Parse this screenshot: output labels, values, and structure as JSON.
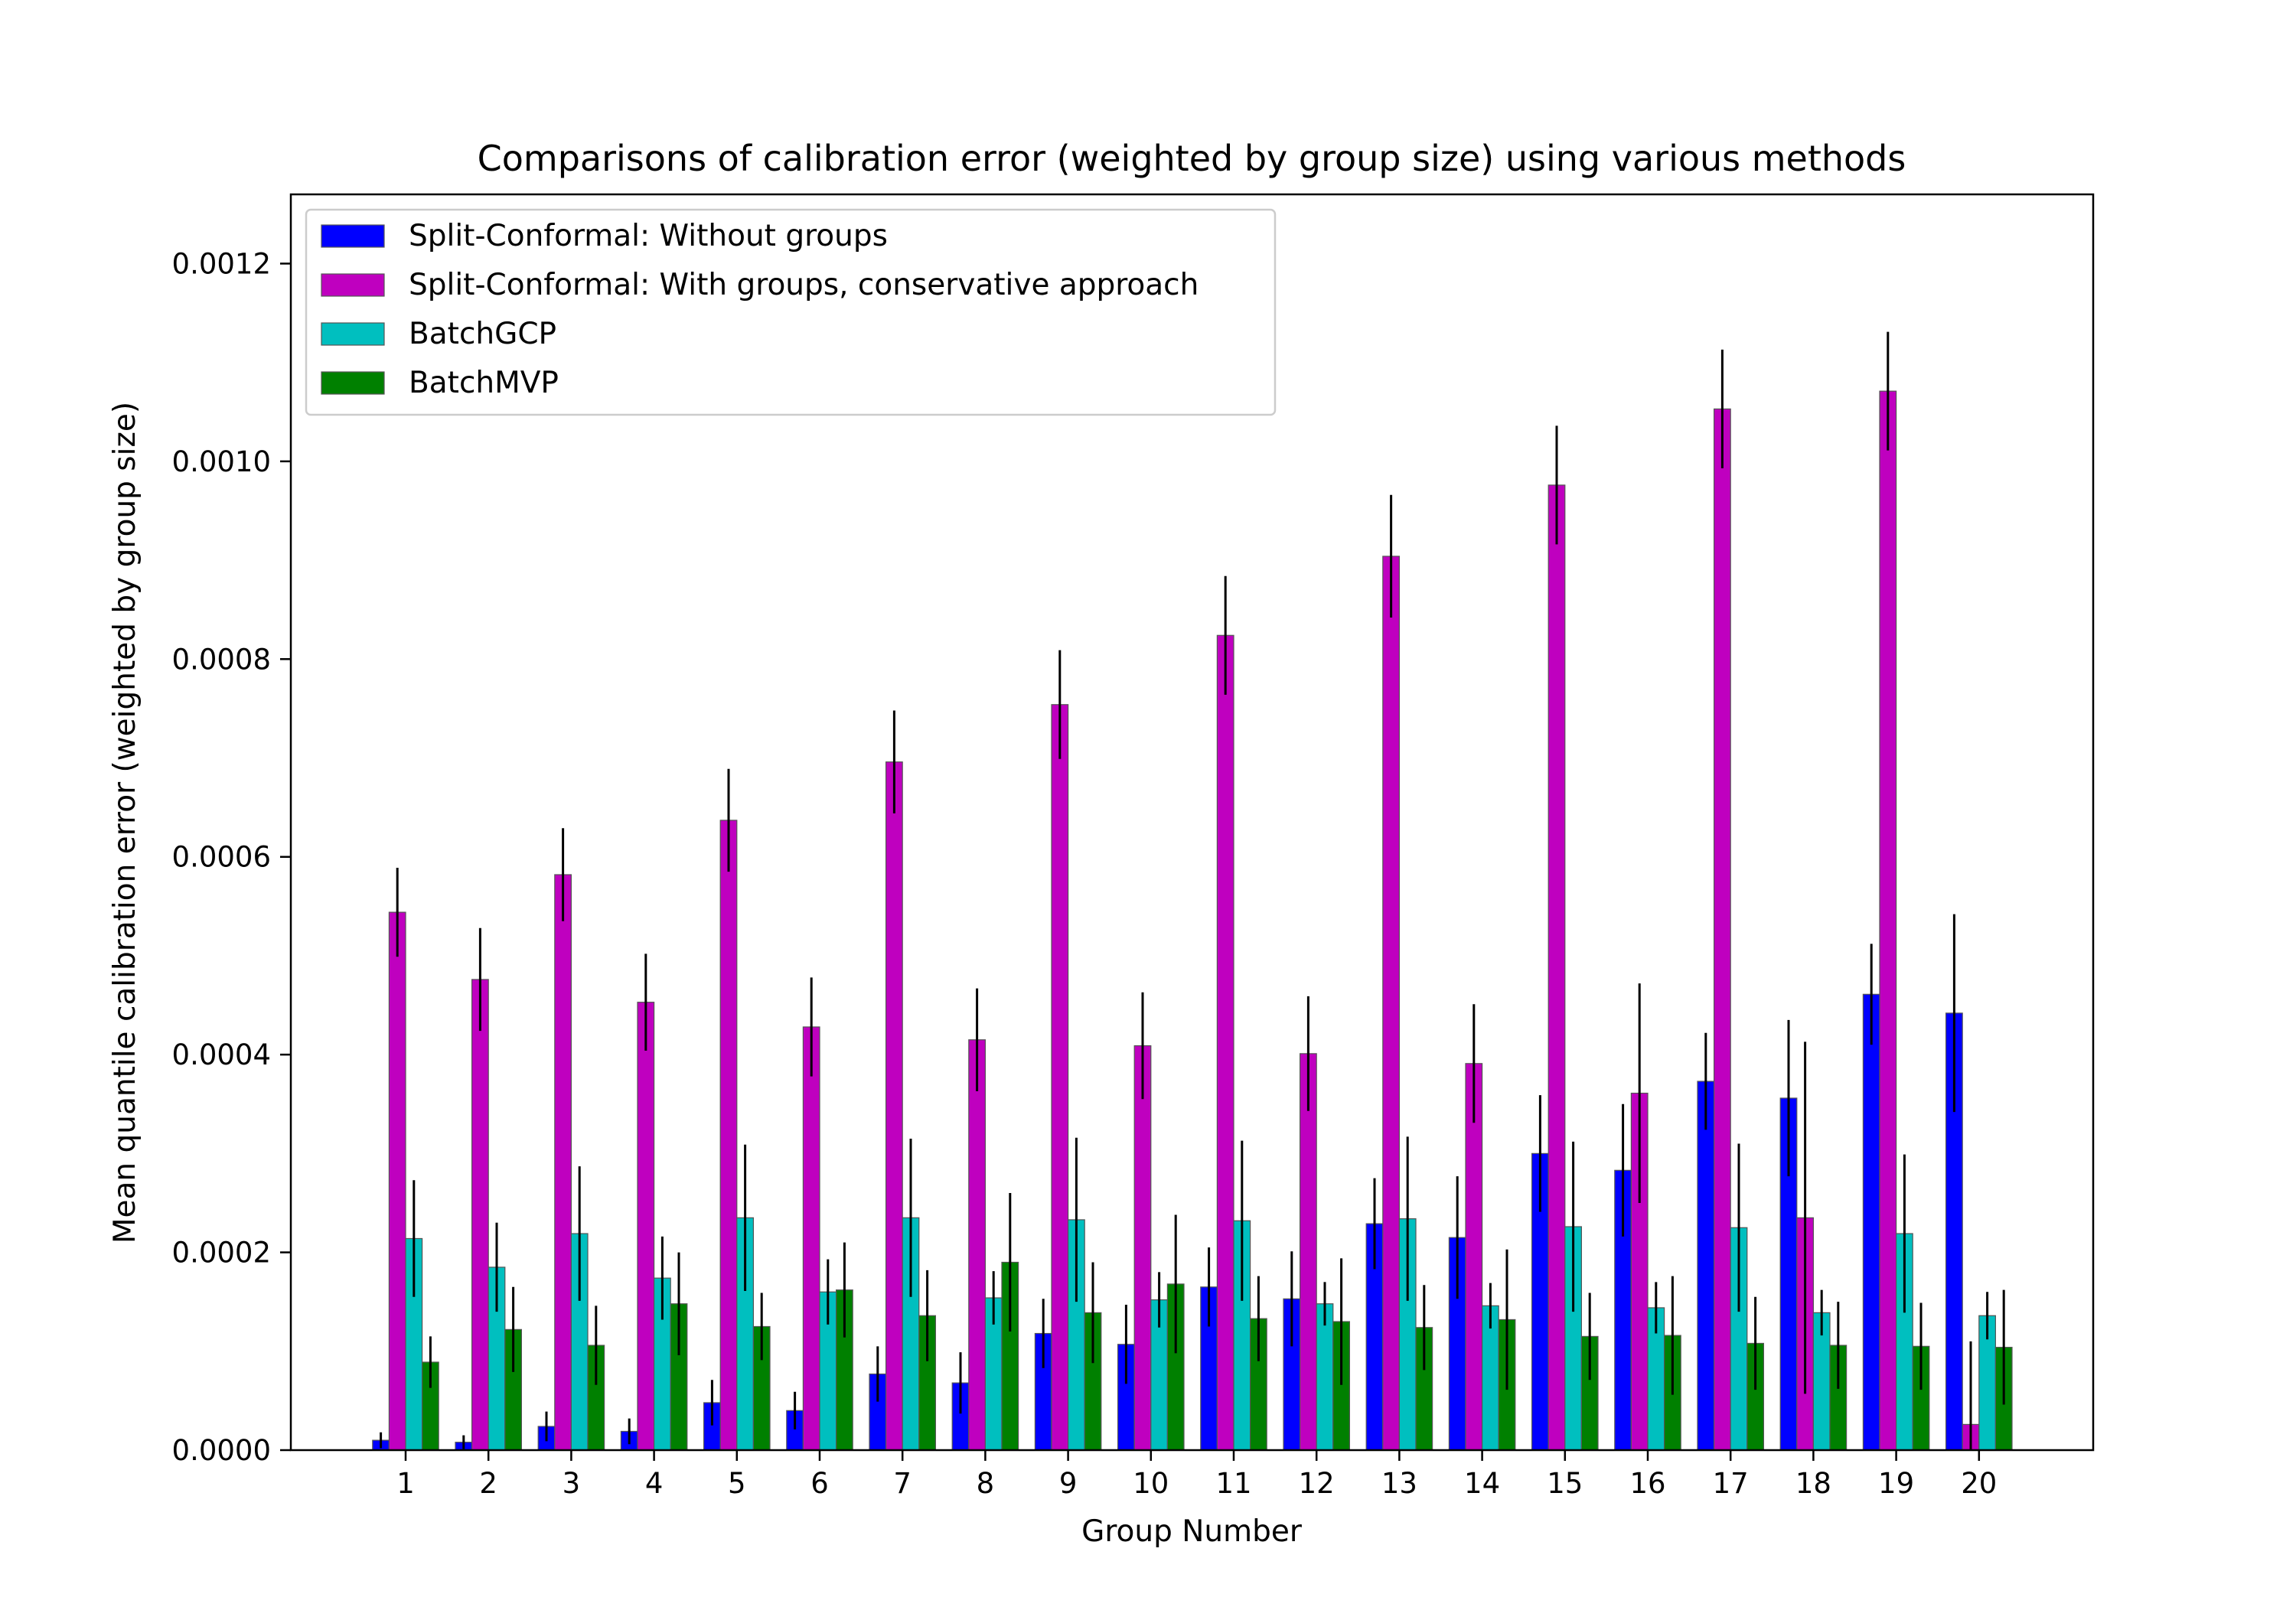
{
  "chart_data": {
    "type": "bar",
    "title": "Comparisons of calibration error (weighted by group size) using various methods",
    "xlabel": "Group Number",
    "ylabel": "Mean quantile calibration error (weighted by group size)",
    "ylim": [
      0,
      0.00127
    ],
    "yticks": [
      0,
      0.0002,
      0.0004,
      0.0006,
      0.0008,
      0.001,
      0.0012
    ],
    "ytick_labels": [
      "0.0000",
      "0.0002",
      "0.0004",
      "0.0006",
      "0.0008",
      "0.0010",
      "0.0012"
    ],
    "categories": [
      "1",
      "2",
      "3",
      "4",
      "5",
      "6",
      "7",
      "8",
      "9",
      "10",
      "11",
      "12",
      "13",
      "14",
      "15",
      "16",
      "17",
      "18",
      "19",
      "20"
    ],
    "legend_position": "top-left",
    "grid": false,
    "series": [
      {
        "name": "Split-Conformal: Without groups",
        "color": "#0000ff",
        "values": [
          1e-05,
          8e-06,
          2.4e-05,
          1.9e-05,
          4.8e-05,
          4e-05,
          7.7e-05,
          6.8e-05,
          0.000118,
          0.000107,
          0.000165,
          0.000153,
          0.000229,
          0.000215,
          0.0003,
          0.000283,
          0.000373,
          0.000356,
          0.000461,
          0.000442
        ],
        "errors": [
          8e-06,
          7e-06,
          1.5e-05,
          1.3e-05,
          2.3e-05,
          1.9e-05,
          2.8e-05,
          3.1e-05,
          3.5e-05,
          4e-05,
          4e-05,
          4.8e-05,
          4.6e-05,
          6.2e-05,
          5.9e-05,
          6.7e-05,
          4.9e-05,
          7.9e-05,
          5.1e-05,
          0.0001
        ]
      },
      {
        "name": "Split-Conformal: With groups, conservative approach",
        "color": "#bf00bf",
        "values": [
          0.000544,
          0.000476,
          0.000582,
          0.000453,
          0.000637,
          0.000428,
          0.000696,
          0.000415,
          0.000754,
          0.000409,
          0.000824,
          0.000401,
          0.000904,
          0.000391,
          0.000976,
          0.000361,
          0.001053,
          0.000235,
          0.001071,
          2.6e-05
        ],
        "errors": [
          4.5e-05,
          5.2e-05,
          4.7e-05,
          4.9e-05,
          5.2e-05,
          5e-05,
          5.2e-05,
          5.2e-05,
          5.5e-05,
          5.4e-05,
          6e-05,
          5.8e-05,
          6.2e-05,
          6e-05,
          6e-05,
          0.000111,
          6e-05,
          0.000178,
          6e-05,
          8.4e-05
        ]
      },
      {
        "name": "BatchGCP",
        "color": "#00bfbf",
        "values": [
          0.000214,
          0.000185,
          0.000219,
          0.000174,
          0.000235,
          0.00016,
          0.000235,
          0.000154,
          0.000233,
          0.000152,
          0.000232,
          0.000148,
          0.000234,
          0.000146,
          0.000226,
          0.000144,
          0.000225,
          0.000139,
          0.000219,
          0.000136
        ],
        "errors": [
          5.9e-05,
          4.5e-05,
          6.8e-05,
          4.2e-05,
          7.4e-05,
          3.3e-05,
          8e-05,
          2.7e-05,
          8.3e-05,
          2.8e-05,
          8.1e-05,
          2.2e-05,
          8.3e-05,
          2.3e-05,
          8.6e-05,
          2.6e-05,
          8.5e-05,
          2.3e-05,
          8e-05,
          2.4e-05
        ]
      },
      {
        "name": "BatchMVP",
        "color": "#008000",
        "values": [
          8.9e-05,
          0.000122,
          0.000106,
          0.000148,
          0.000125,
          0.000162,
          0.000136,
          0.00019,
          0.000139,
          0.000168,
          0.000133,
          0.00013,
          0.000124,
          0.000132,
          0.000115,
          0.000116,
          0.000108,
          0.000106,
          0.000105,
          0.000104
        ],
        "errors": [
          2.6e-05,
          4.3e-05,
          4e-05,
          5.2e-05,
          3.4e-05,
          4.8e-05,
          4.6e-05,
          7e-05,
          5.1e-05,
          7e-05,
          4.3e-05,
          6.4e-05,
          4.3e-05,
          7.1e-05,
          4.4e-05,
          6e-05,
          4.7e-05,
          4.4e-05,
          4.4e-05,
          5.8e-05
        ]
      }
    ]
  }
}
